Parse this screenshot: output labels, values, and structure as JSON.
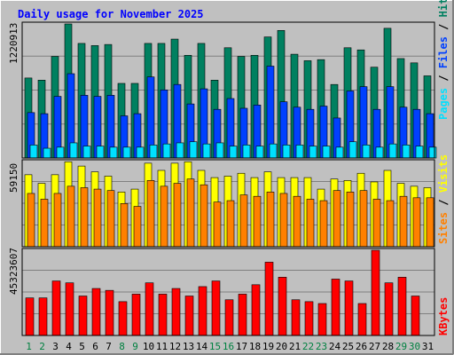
{
  "chart_data": {
    "type": "bar",
    "title": "Daily usage for November 2025",
    "categories": [
      "1",
      "2",
      "3",
      "4",
      "5",
      "6",
      "7",
      "8",
      "9",
      "10",
      "11",
      "12",
      "13",
      "14",
      "15",
      "16",
      "17",
      "18",
      "19",
      "20",
      "21",
      "22",
      "23",
      "24",
      "25",
      "26",
      "27",
      "28",
      "29",
      "30",
      "31"
    ],
    "weekend_days": [
      "1",
      "2",
      "8",
      "9",
      "15",
      "16",
      "22",
      "23",
      "29",
      "30"
    ],
    "panels": [
      {
        "name": "pages-files-hits",
        "max_label": "1220913",
        "ymax": 1240000,
        "series": [
          {
            "name": "Hits",
            "color": "#008060",
            "values": [
              740000,
              720000,
              940000,
              1240000,
              1060000,
              1040000,
              1050000,
              690000,
              690000,
              1060000,
              1060000,
              1100000,
              950000,
              1060000,
              720000,
              1020000,
              940000,
              950000,
              1120000,
              1180000,
              960000,
              900000,
              910000,
              680000,
              1020000,
              1000000,
              840000,
              1200000,
              920000,
              880000,
              760000
            ]
          },
          {
            "name": "Files",
            "color": "#0040FF",
            "values": [
              420000,
              410000,
              570000,
              780000,
              580000,
              570000,
              580000,
              390000,
              410000,
              750000,
              630000,
              680000,
              500000,
              640000,
              450000,
              550000,
              460000,
              490000,
              850000,
              520000,
              470000,
              450000,
              480000,
              370000,
              620000,
              660000,
              450000,
              660000,
              470000,
              450000,
              410000
            ]
          },
          {
            "name": "Pages",
            "color": "#00E0FF",
            "values": [
              120000,
              90000,
              100000,
              140000,
              110000,
              110000,
              100000,
              100000,
              100000,
              120000,
              130000,
              140000,
              150000,
              130000,
              140000,
              110000,
              120000,
              110000,
              130000,
              120000,
              120000,
              110000,
              110000,
              100000,
              150000,
              120000,
              100000,
              130000,
              120000,
              110000,
              100000
            ]
          }
        ],
        "legend": [
          "Pages",
          "Files",
          "Hits"
        ]
      },
      {
        "name": "sites-visits",
        "max_label": "59150",
        "ymax": 59150,
        "series": [
          {
            "name": "Visits",
            "color": "#FFFF00",
            "values": [
              50000,
              44000,
              50000,
              59000,
              56000,
              52000,
              49000,
              38000,
              40000,
              58000,
              53000,
              58000,
              59000,
              53000,
              48000,
              49000,
              51000,
              48000,
              52000,
              48000,
              48000,
              48000,
              40000,
              47000,
              46000,
              51000,
              45000,
              53000,
              44000,
              42000,
              41000
            ]
          },
          {
            "name": "Sites",
            "color": "#FF8000",
            "values": [
              37000,
              33000,
              37000,
              42000,
              41000,
              40000,
              39000,
              30000,
              28000,
              46000,
              42000,
              44000,
              47000,
              43000,
              31000,
              32000,
              36000,
              35000,
              38000,
              37000,
              35000,
              33000,
              32000,
              39000,
              38000,
              39000,
              33000,
              32000,
              35000,
              34000,
              34000
            ]
          }
        ],
        "legend": [
          "Sites",
          "Visits"
        ]
      },
      {
        "name": "kbytes",
        "max_label": "45323607",
        "ymax": 45323607,
        "series": [
          {
            "name": "KBytes",
            "color": "#FF0000",
            "values": [
              20000000,
              20000000,
              29000000,
              28000000,
              21000000,
              25000000,
              24000000,
              18000000,
              22000000,
              28000000,
              22000000,
              25000000,
              21000000,
              26000000,
              29000000,
              19000000,
              22000000,
              27000000,
              39000000,
              31000000,
              19000000,
              18000000,
              17000000,
              30000000,
              29000000,
              17000000,
              45323607,
              28000000,
              31000000,
              21000000,
              0
            ]
          }
        ],
        "legend": [
          "KBytes"
        ]
      }
    ],
    "colors": {
      "background": "#C0C0C0",
      "title": "#0000FF",
      "weekday_label": "#000000",
      "weekend_label": "#008040",
      "hits": "#008060",
      "files": "#0040FF",
      "pages": "#00E0FF",
      "visits": "#FFFF00",
      "sites": "#FF8000",
      "kbytes": "#FF0000"
    },
    "grid": true
  }
}
